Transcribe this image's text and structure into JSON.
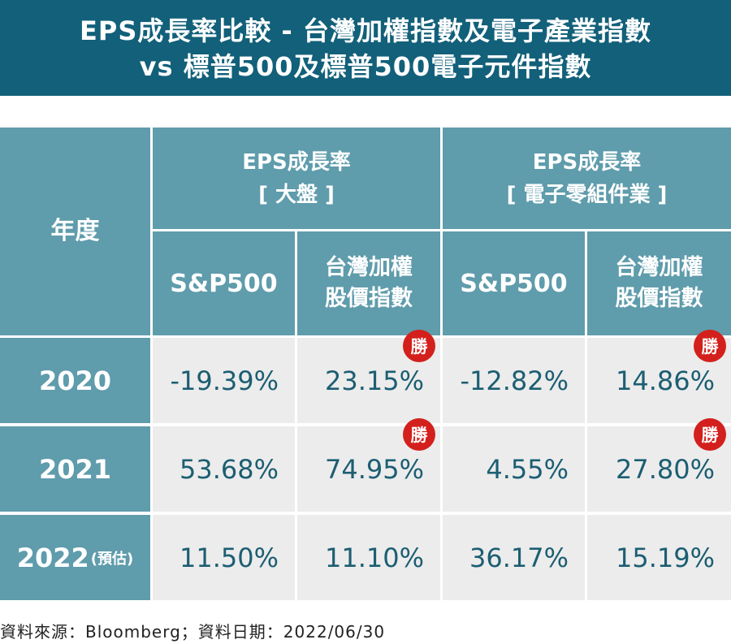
{
  "title": {
    "line1": "EPS成長率比較 - 台灣加權指數及電子產業指數",
    "line2": "vs 標普500及標普500電子元件指數"
  },
  "chart_data": {
    "type": "table",
    "row_header": "年度",
    "groups": [
      {
        "line1": "EPS成長率",
        "line2": "[ 大盤 ]"
      },
      {
        "line1": "EPS成長率",
        "line2": "[ 電子零組件業 ]"
      }
    ],
    "columns": [
      {
        "line1": "S&P500",
        "line2": ""
      },
      {
        "line1": "台灣加權",
        "line2": "股價指數"
      },
      {
        "line1": "S&P500",
        "line2": ""
      },
      {
        "line1": "台灣加權",
        "line2": "股價指數"
      }
    ],
    "rows": [
      {
        "year": "2020",
        "note": "",
        "values": [
          "-19.39%",
          "23.15%",
          "-12.82%",
          "14.86%"
        ],
        "winner": [
          false,
          true,
          false,
          true
        ]
      },
      {
        "year": "2021",
        "note": "",
        "values": [
          "53.68%",
          "74.95%",
          "4.55%",
          "27.80%"
        ],
        "winner": [
          false,
          true,
          false,
          true
        ]
      },
      {
        "year": "2022",
        "note": "(預估)",
        "values": [
          "11.50%",
          "11.10%",
          "36.17%",
          "15.19%"
        ],
        "winner": [
          false,
          false,
          false,
          false
        ]
      }
    ],
    "badge_label": "勝"
  },
  "colors": {
    "title_bg": "#12607a",
    "header_bg": "#5f9cac",
    "cell_bg": "#ececec",
    "value_text": "#1c5e72",
    "badge_bg": "#d3201c"
  },
  "footer": {
    "source": "資料來源：Bloomberg；資料日期：2022/06/30"
  }
}
